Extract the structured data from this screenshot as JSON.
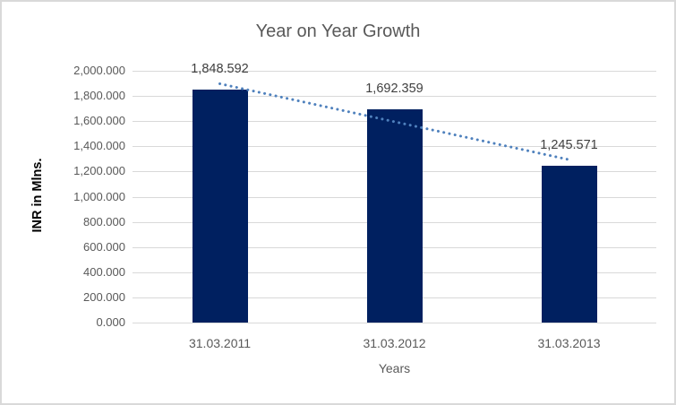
{
  "chart_data": {
    "type": "bar",
    "title": "Year on Year Growth",
    "xlabel": "Years",
    "ylabel": "INR in Mlns.",
    "categories": [
      "31.03.2011",
      "31.03.2012",
      "31.03.2013"
    ],
    "values": [
      1848.592,
      1692.359,
      1245.571
    ],
    "data_labels": [
      "1,848.592",
      "1,692.359",
      "1,245.571"
    ],
    "ylim": [
      0,
      2000
    ],
    "ytick_step": 200,
    "ytick_labels": [
      "0.000",
      "200.000",
      "400.000",
      "600.000",
      "800.000",
      "1,000.000",
      "1,200.000",
      "1,400.000",
      "1,600.000",
      "1,800.000",
      "2,000.000"
    ],
    "grid": true,
    "legend": false,
    "trendline": {
      "type": "linear",
      "style": "dotted"
    },
    "colors": {
      "bar": "#002060",
      "trendline": "#4f81bd",
      "gridline": "#d9d9d9",
      "title_text": "#595959",
      "axis_text": "#595959",
      "data_label_text": "#3f3f3f",
      "y_axis_title_text": "#000000",
      "frame_border": "#d9d9d9",
      "background": "#ffffff"
    }
  }
}
